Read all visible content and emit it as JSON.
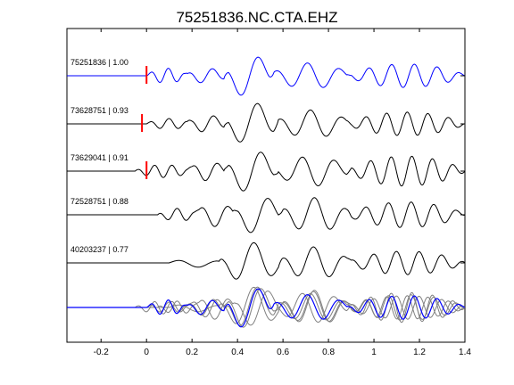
{
  "chart_data": {
    "type": "line",
    "title": "75251836.NC.CTA.EHZ",
    "xlabel": "",
    "ylabel": "",
    "xlim": [
      -0.35,
      1.4
    ],
    "x_ticks": [
      -0.2,
      0,
      0.2,
      0.4,
      0.6,
      0.8,
      1,
      1.2,
      1.4
    ],
    "x_tick_labels": [
      "-0.2",
      "0",
      "0.2",
      "0.4",
      "0.6",
      "0.8",
      "1",
      "1.2",
      "1.4"
    ],
    "grid": false,
    "trace_color_master": "#0000ff",
    "trace_color_other": "#000000",
    "stack_color_other": "#808080",
    "marker_color": "#ff0000",
    "traces": [
      {
        "label": "75251836 | 1.00",
        "pick": 0.0,
        "segments": [
          {
            "t0": 0.0,
            "t1": 0.18,
            "f": 13,
            "a": 0.35,
            "p": 0.0
          },
          {
            "t0": 0.17,
            "t1": 0.36,
            "f": 9,
            "a": 0.35,
            "p": 1.0
          },
          {
            "t0": 0.34,
            "t1": 0.56,
            "f": 6,
            "a": 1.0,
            "p": 2.0
          },
          {
            "t0": 0.54,
            "t1": 0.9,
            "f": 7,
            "a": 0.6,
            "p": 0.5
          },
          {
            "t0": 0.88,
            "t1": 1.4,
            "f": 10,
            "a": 0.55,
            "p": 1.7
          }
        ]
      },
      {
        "label": "73628751 | 0.93",
        "pick": -0.02,
        "segments": [
          {
            "t0": 0.0,
            "t1": 0.2,
            "f": 12,
            "a": 0.25,
            "p": 0.4
          },
          {
            "t0": 0.18,
            "t1": 0.36,
            "f": 9,
            "a": 0.4,
            "p": 1.3
          },
          {
            "t0": 0.34,
            "t1": 0.58,
            "f": 6,
            "a": 1.0,
            "p": 2.2
          },
          {
            "t0": 0.56,
            "t1": 0.9,
            "f": 7,
            "a": 0.65,
            "p": 0.8
          },
          {
            "t0": 0.88,
            "t1": 1.4,
            "f": 11,
            "a": 0.55,
            "p": 2.0
          }
        ]
      },
      {
        "label": "73629041 | 0.91",
        "pick": 0.0,
        "segments": [
          {
            "t0": -0.05,
            "t1": 0.2,
            "f": 13,
            "a": 0.3,
            "p": 0.9
          },
          {
            "t0": 0.18,
            "t1": 0.36,
            "f": 9,
            "a": 0.45,
            "p": 0.3
          },
          {
            "t0": 0.34,
            "t1": 0.58,
            "f": 6,
            "a": 1.0,
            "p": 1.6
          },
          {
            "t0": 0.56,
            "t1": 0.9,
            "f": 7,
            "a": 0.7,
            "p": 2.4
          },
          {
            "t0": 0.88,
            "t1": 1.4,
            "f": 11,
            "a": 0.7,
            "p": 0.6
          }
        ]
      },
      {
        "label": "72528751 | 0.88",
        "pick": null,
        "segments": [
          {
            "t0": 0.05,
            "t1": 0.23,
            "f": 12,
            "a": 0.3,
            "p": 1.5
          },
          {
            "t0": 0.21,
            "t1": 0.4,
            "f": 8,
            "a": 0.55,
            "p": 0.2
          },
          {
            "t0": 0.38,
            "t1": 0.6,
            "f": 6,
            "a": 0.9,
            "p": 1.9
          },
          {
            "t0": 0.58,
            "t1": 0.9,
            "f": 7,
            "a": 0.8,
            "p": 0.9
          },
          {
            "t0": 0.88,
            "t1": 1.4,
            "f": 10,
            "a": 0.6,
            "p": 2.6
          }
        ]
      },
      {
        "label": "40203237 | 0.77",
        "pick": null,
        "segments": [
          {
            "t0": 0.1,
            "t1": 0.34,
            "f": 5,
            "a": 0.2,
            "p": 0.7
          },
          {
            "t0": 0.32,
            "t1": 0.6,
            "f": 6,
            "a": 0.95,
            "p": 2.1
          },
          {
            "t0": 0.58,
            "t1": 0.9,
            "f": 7,
            "a": 0.75,
            "p": 1.1
          },
          {
            "t0": 0.88,
            "t1": 1.4,
            "f": 10,
            "a": 0.55,
            "p": 0.4
          }
        ]
      }
    ]
  }
}
